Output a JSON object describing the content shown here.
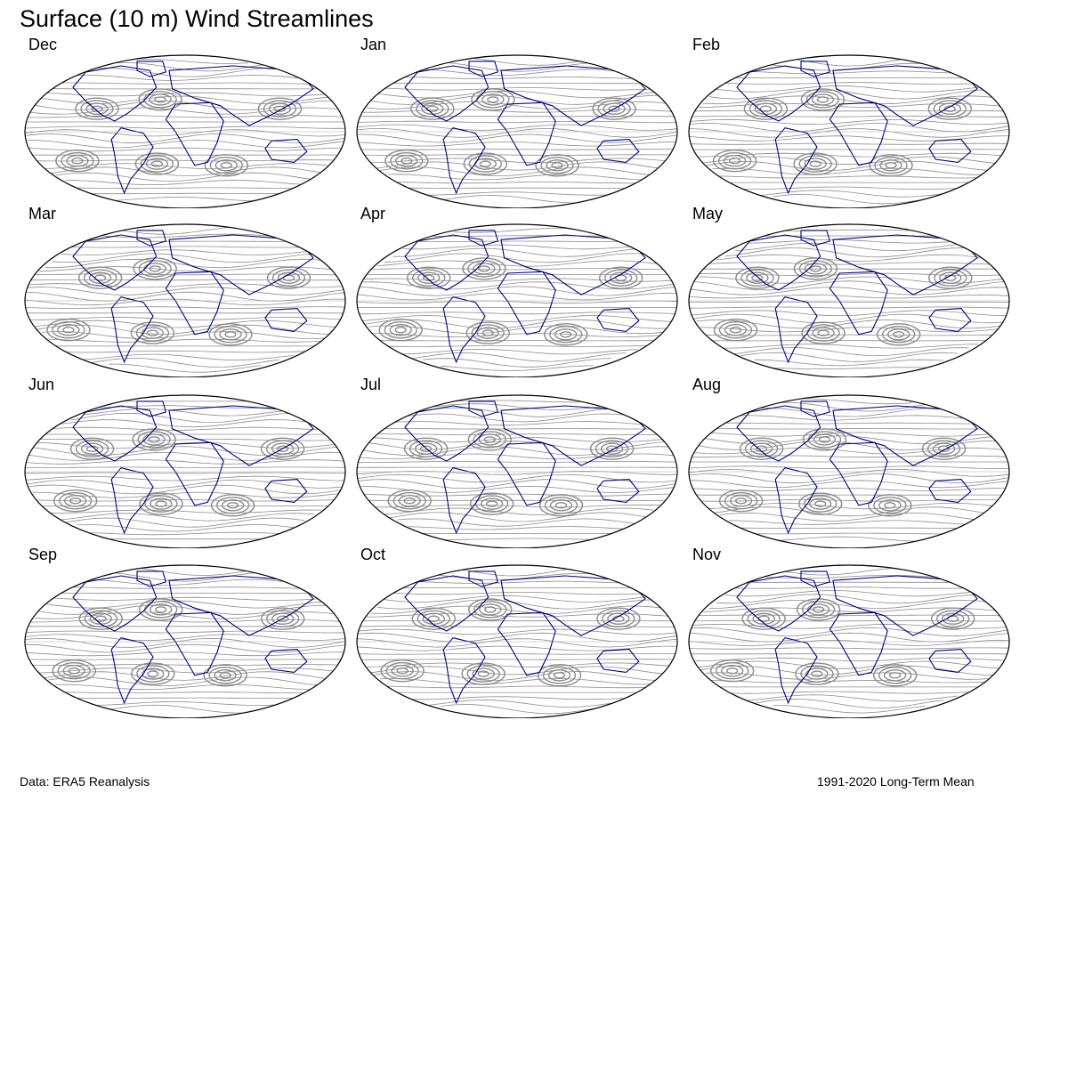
{
  "title": "Surface (10 m) Wind Streamlines",
  "panels": [
    {
      "month": "Dec"
    },
    {
      "month": "Jan"
    },
    {
      "month": "Feb"
    },
    {
      "month": "Mar"
    },
    {
      "month": "Apr"
    },
    {
      "month": "May"
    },
    {
      "month": "Jun"
    },
    {
      "month": "Jul"
    },
    {
      "month": "Aug"
    },
    {
      "month": "Sep"
    },
    {
      "month": "Oct"
    },
    {
      "month": "Nov"
    }
  ],
  "footer": {
    "source": "Data: ERA5 Reanalysis",
    "period": "1991-2020 Long-Term Mean"
  },
  "colors": {
    "streamline": "#8c8c8c",
    "coastline": "#000080",
    "outline": "#000000"
  }
}
